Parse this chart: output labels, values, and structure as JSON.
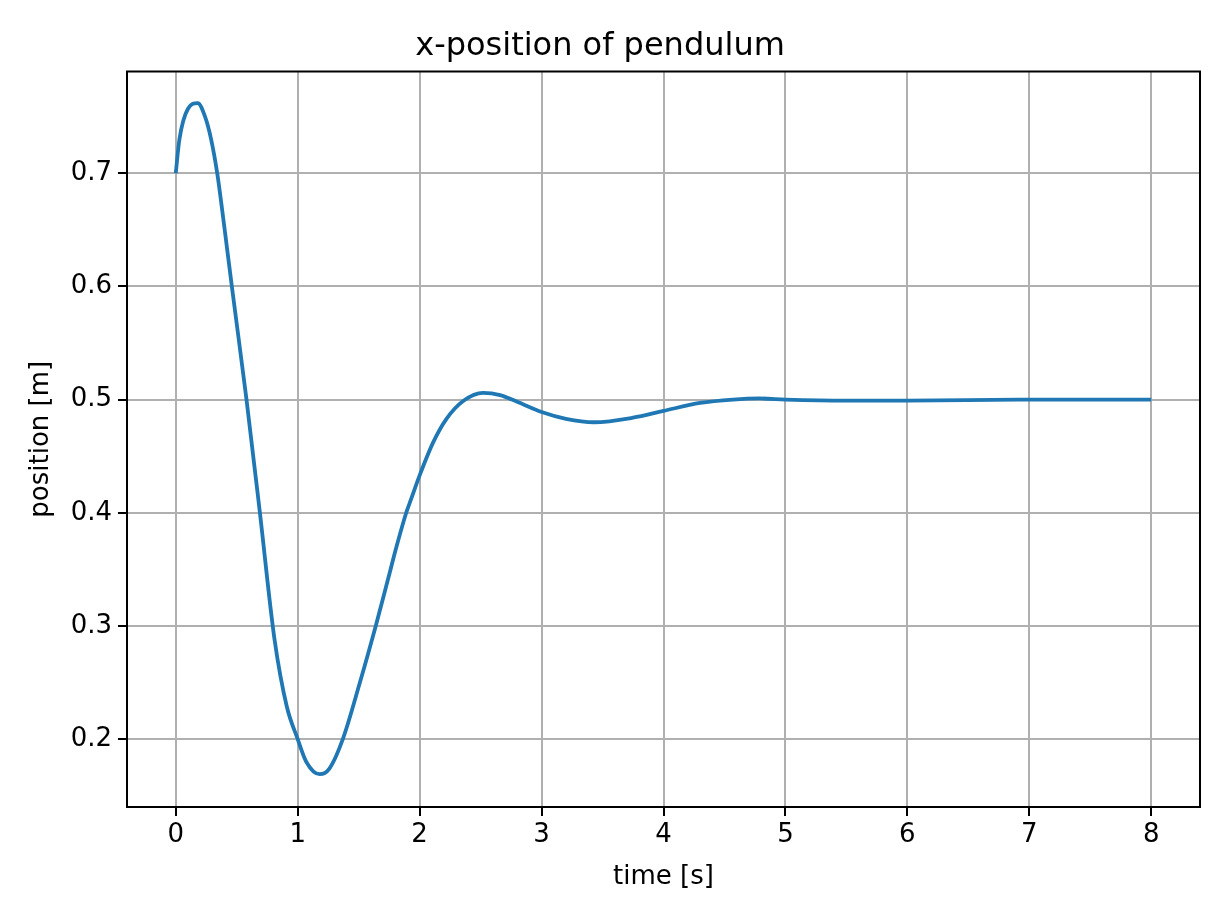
{
  "chart_data": {
    "type": "line",
    "title": "x-position of pendulum",
    "xlabel": "time [s]",
    "ylabel": "position [m]",
    "x": [
      0,
      0.03,
      0.1,
      0.18,
      0.24,
      0.29,
      0.34,
      0.38,
      0.42,
      0.46,
      0.58,
      0.69,
      0.81,
      0.91,
      1.0,
      1.07,
      1.18,
      1.26,
      1.37,
      1.51,
      1.64,
      1.74,
      1.81,
      1.89,
      1.93,
      2.0,
      2.11,
      2.22,
      2.36,
      2.52,
      2.66,
      2.8,
      3.0,
      3.2,
      3.43,
      3.75,
      4.0,
      4.3,
      4.57,
      4.79,
      5.0,
      5.5,
      6.0,
      7.0,
      8.0
    ],
    "series": [
      {
        "color": "#1f77b4",
        "values": [
          0.7,
          0.73,
          0.757,
          0.762,
          0.75,
          0.73,
          0.7,
          0.668,
          0.634,
          0.6,
          0.5,
          0.4,
          0.288,
          0.229,
          0.2,
          0.18,
          0.169,
          0.174,
          0.2,
          0.25,
          0.3,
          0.341,
          0.37,
          0.4,
          0.412,
          0.433,
          0.462,
          0.483,
          0.499,
          0.506,
          0.504,
          0.498,
          0.489,
          0.483,
          0.48,
          0.484,
          0.49,
          0.497,
          0.5,
          0.501,
          0.5,
          0.499,
          0.499,
          0.5,
          0.5
        ]
      }
    ],
    "xlim": [
      -0.4,
      8.4
    ],
    "ylim": [
      0.14,
      0.79
    ],
    "xticks": [
      0,
      1,
      2,
      3,
      4,
      5,
      6,
      7,
      8
    ],
    "yticks": [
      0.2,
      0.3,
      0.4,
      0.5,
      0.6,
      0.7
    ],
    "grid": true,
    "marker": "none",
    "line_style": "solid"
  }
}
